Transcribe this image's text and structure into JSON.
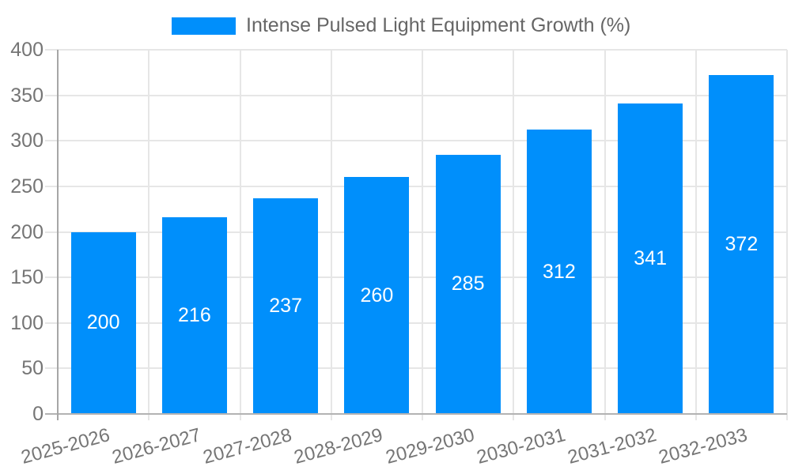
{
  "chart_data": {
    "type": "bar",
    "title": "Intense Pulsed Light Equipment Growth (%)",
    "categories": [
      "2025-2026",
      "2026-2027",
      "2027-2028",
      "2028-2029",
      "2029-2030",
      "2030-2031",
      "2031-2032",
      "2032-2033"
    ],
    "values": [
      200,
      216,
      237,
      260,
      285,
      312,
      341,
      372
    ],
    "xlabel": "",
    "ylabel": "",
    "ylim": [
      0,
      400
    ],
    "yticks": [
      0,
      50,
      100,
      150,
      200,
      250,
      300,
      350,
      400
    ],
    "grid": true,
    "legend_position": "top",
    "colors": {
      "bar": "#008FFB",
      "data_label": "#FFFFFF",
      "grid_line": "#E6E6E6",
      "axis_line_x": "#B3B3B3",
      "axis_line_y": "#A6A6A6",
      "tick_label": "#757575",
      "legend_text": "#666666",
      "background": "#FFFFFF"
    }
  }
}
